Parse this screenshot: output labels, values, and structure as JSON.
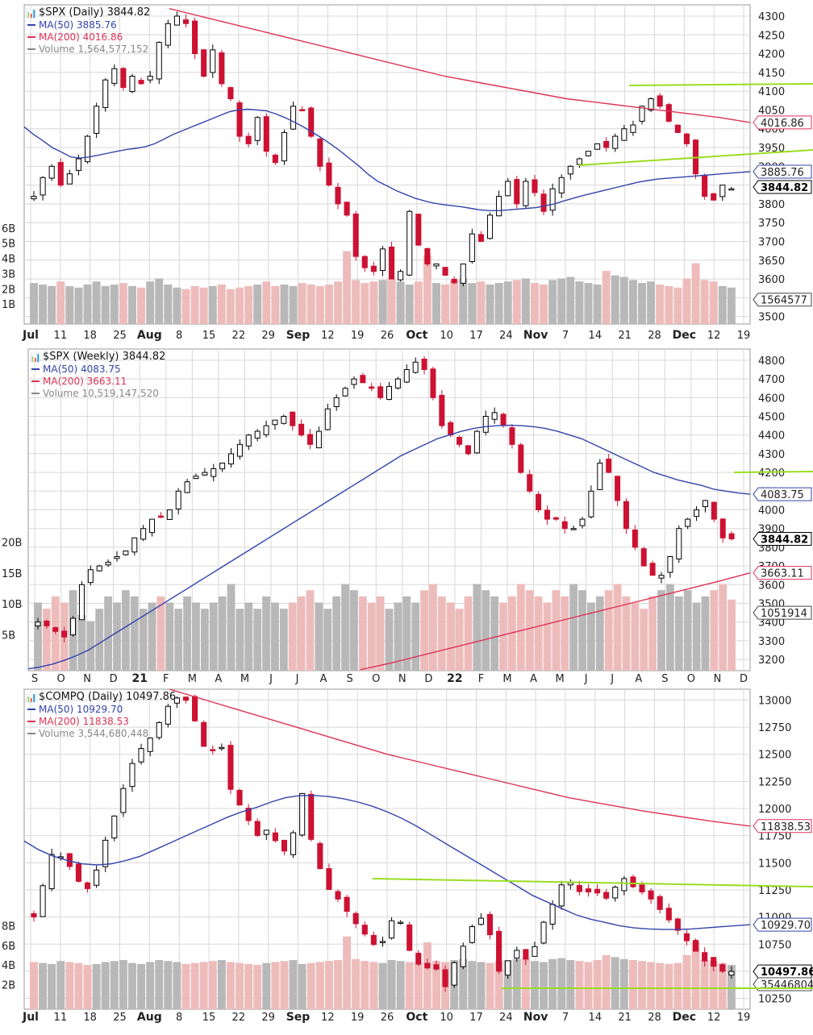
{
  "colors": {
    "up": "#000000",
    "down": "#cc1133",
    "ma50": "#3344aa",
    "ma200": "#dd3355",
    "trend": "#99dd22",
    "volUp": "#b8b8b8",
    "volDown": "#eebbbb",
    "grid": "#d8d8d8"
  },
  "chart_data": [
    {
      "type": "candlestick",
      "title": "$SPX (Daily) 3844.82",
      "legend": [
        {
          "label": "MA(50) 3885.76",
          "color": "#3344aa"
        },
        {
          "label": "MA(200) 4016.86",
          "color": "#dd3355"
        },
        {
          "label": "Volume 1,564,577,152",
          "color": "#888888"
        }
      ],
      "y_ticks": [
        "4300",
        "4250",
        "4200",
        "4150",
        "4100",
        "4050",
        "4000",
        "3950",
        "3900",
        "3850",
        "3800",
        "3750",
        "3700",
        "3650",
        "3600",
        "3550",
        "3500"
      ],
      "ylim": [
        3480,
        4330
      ],
      "vol_ticks": [
        "6B",
        "5B",
        "4B",
        "3B",
        "2B",
        "1B"
      ],
      "vol_max": 7,
      "x_labels": [
        "Jul",
        "11",
        "18",
        "25",
        "Aug",
        "8",
        "15",
        "22",
        "29",
        "Sep",
        "12",
        "19",
        "26",
        "Oct",
        "10",
        "17",
        "24",
        "Nov",
        "7",
        "14",
        "21",
        "28",
        "Dec",
        "12",
        "19"
      ],
      "bold_x_labels": [
        "Jul",
        "Aug",
        "Sep",
        "Oct",
        "Nov",
        "Dec"
      ],
      "tags": [
        {
          "label": "4016.86",
          "value": 4016.86,
          "kind": "ma200"
        },
        {
          "label": "3885.76",
          "value": 3885.76,
          "kind": "ma50"
        },
        {
          "label": "3844.82",
          "value": 3844.82,
          "kind": "last"
        },
        {
          "label": "1564577",
          "value": 3545,
          "kind": "vol"
        }
      ],
      "anchors": [
        3820,
        3870,
        3900,
        3850,
        3880,
        3920,
        3980,
        4060,
        4130,
        4160,
        4110,
        4140,
        4120,
        4140,
        4230,
        4280,
        4300,
        4280,
        4200,
        4140,
        4210,
        4120,
        4080,
        3980,
        3960,
        4030,
        3940,
        3910,
        3990,
        4060,
        4050,
        3980,
        3900,
        3850,
        3800,
        3770,
        3660,
        3630,
        3620,
        3680,
        3600,
        3620,
        3780,
        3690,
        3640,
        3640,
        3610,
        3590,
        3640,
        3720,
        3700,
        3770,
        3820,
        3860,
        3800,
        3860,
        3830,
        3780,
        3840,
        3870,
        3900,
        3920,
        3940,
        3960,
        3950,
        3980,
        4000,
        4010,
        4060,
        4080,
        4060,
        4020,
        3990,
        3960,
        3880,
        3820,
        3810,
        3850,
        3840
      ],
      "ma50": [
        4005,
        3985,
        3968,
        3950,
        3938,
        3925,
        3922,
        3925,
        3930,
        3935,
        3940,
        3945,
        3948,
        3952,
        3960,
        3972,
        3985,
        3995,
        4005,
        4015,
        4025,
        4035,
        4045,
        4050,
        4052,
        4050,
        4048,
        4040,
        4030,
        4018,
        4005,
        3990,
        3975,
        3958,
        3940,
        3920,
        3900,
        3878,
        3860,
        3848,
        3835,
        3825,
        3815,
        3808,
        3802,
        3798,
        3795,
        3792,
        3788,
        3784,
        3782,
        3782,
        3784,
        3786,
        3788,
        3790,
        3795,
        3800,
        3808,
        3815,
        3822,
        3828,
        3834,
        3840,
        3846,
        3852,
        3858,
        3862,
        3866,
        3868,
        3870,
        3872,
        3874,
        3876,
        3878,
        3880,
        3882,
        3884,
        3885.76
      ],
      "ma200": [
        4320,
        4300,
        4280,
        4260,
        4240,
        4220,
        4200,
        4180,
        4160,
        4140,
        4125,
        4110,
        4095,
        4080,
        4070,
        4060,
        4050,
        4040,
        4030,
        4016.86
      ],
      "volumes": [
        2.7,
        2.6,
        2.5,
        2.8,
        2.5,
        2.4,
        2.6,
        2.8,
        2.5,
        2.6,
        2.7,
        2.5,
        2.4,
        2.8,
        3.0,
        2.6,
        2.4,
        2.3,
        2.5,
        2.4,
        2.5,
        2.6,
        2.3,
        2.4,
        2.5,
        2.6,
        2.8,
        2.5,
        2.6,
        2.5,
        2.7,
        2.6,
        2.5,
        2.6,
        2.8,
        4.8,
        2.9,
        2.7,
        2.8,
        2.9,
        3.0,
        2.8,
        2.6,
        2.8,
        4.5,
        2.7,
        2.6,
        2.9,
        3.0,
        2.7,
        2.8,
        2.6,
        2.7,
        2.8,
        2.9,
        3.0,
        2.7,
        2.6,
        2.9,
        3.0,
        3.1,
        2.8,
        2.7,
        2.6,
        3.5,
        3.2,
        3.1,
        2.9,
        2.7,
        2.8,
        2.6,
        2.5,
        2.4,
        3.0,
        4.0,
        2.9,
        2.8,
        2.5,
        2.4
      ]
    },
    {
      "type": "candlestick",
      "title": "$SPX (Weekly) 3844.82",
      "legend": [
        {
          "label": "MA(50) 4083.75",
          "color": "#3344aa"
        },
        {
          "label": "MA(200) 3663.11",
          "color": "#dd3355"
        },
        {
          "label": "Volume 10,519,147,520",
          "color": "#888888"
        }
      ],
      "y_ticks": [
        "4800",
        "4700",
        "4600",
        "4500",
        "4400",
        "4300",
        "4200",
        "4100",
        "4000",
        "3900",
        "3800",
        "3700",
        "3600",
        "3500",
        "3400",
        "3300",
        "3200"
      ],
      "ylim": [
        3140,
        4860
      ],
      "vol_ticks": [
        "20B",
        "15B",
        "10B",
        "5B"
      ],
      "vol_max": 25,
      "x_labels": [
        "S",
        "O",
        "N",
        "D",
        "21",
        "F",
        "M",
        "A",
        "M",
        "J",
        "J",
        "A",
        "S",
        "O",
        "N",
        "D",
        "22",
        "F",
        "M",
        "A",
        "M",
        "J",
        "J",
        "A",
        "S",
        "O",
        "N",
        "D"
      ],
      "bold_x_labels": [
        "21",
        "22"
      ],
      "tags": [
        {
          "label": "4083.75",
          "value": 4083.75,
          "kind": "ma50"
        },
        {
          "label": "3844.82",
          "value": 3844.82,
          "kind": "last"
        },
        {
          "label": "3663.11",
          "value": 3663.11,
          "kind": "ma200"
        },
        {
          "label": "1051914",
          "value": 3450,
          "kind": "vol"
        }
      ],
      "anchors": [
        3400,
        3380,
        3350,
        3320,
        3420,
        3600,
        3680,
        3700,
        3720,
        3750,
        3780,
        3850,
        3900,
        3950,
        3960,
        4000,
        4100,
        4150,
        4180,
        4200,
        4220,
        4250,
        4300,
        4350,
        4400,
        4420,
        4450,
        4480,
        4500,
        4450,
        4400,
        4350,
        4420,
        4540,
        4600,
        4650,
        4700,
        4680,
        4650,
        4600,
        4660,
        4700,
        4750,
        4790,
        4750,
        4600,
        4450,
        4400,
        4350,
        4300,
        4420,
        4500,
        4520,
        4450,
        4350,
        4200,
        4100,
        4000,
        3950,
        3950,
        3900,
        3900,
        3950,
        4100,
        4250,
        4200,
        4050,
        3900,
        3800,
        3700,
        3650,
        3650,
        3750,
        3900,
        3950,
        4000,
        4050,
        3950,
        3850,
        3844.82
      ],
      "ma50": [
        3150,
        3160,
        3175,
        3195,
        3220,
        3250,
        3290,
        3330,
        3370,
        3410,
        3450,
        3490,
        3530,
        3570,
        3610,
        3650,
        3690,
        3730,
        3770,
        3810,
        3850,
        3890,
        3930,
        3970,
        4010,
        4050,
        4090,
        4130,
        4170,
        4210,
        4250,
        4290,
        4320,
        4350,
        4380,
        4400,
        4420,
        4435,
        4445,
        4450,
        4452,
        4450,
        4445,
        4435,
        4420,
        4400,
        4380,
        4350,
        4320,
        4290,
        4260,
        4230,
        4200,
        4180,
        4160,
        4145,
        4130,
        4110,
        4100,
        4090,
        4083.75
      ],
      "ma200": [
        3145,
        3180,
        3220,
        3260,
        3300,
        3340,
        3380,
        3420,
        3460,
        3500,
        3540,
        3580,
        3620,
        3663.11
      ],
      "volumes": [
        11,
        10,
        12,
        11,
        13,
        9,
        8,
        10,
        12,
        11,
        13,
        12,
        10,
        11,
        12,
        11,
        10,
        12,
        11,
        10,
        11,
        12,
        14,
        10,
        11,
        10,
        12,
        11,
        10,
        11,
        12,
        13,
        11,
        10,
        12,
        14,
        13,
        12,
        11,
        12,
        10,
        11,
        12,
        11,
        13,
        14,
        12,
        11,
        10,
        12,
        14,
        13,
        12,
        11,
        12,
        14,
        13,
        12,
        11,
        13,
        12,
        14,
        13,
        11,
        12,
        13,
        14,
        12,
        11,
        10,
        12,
        13,
        14,
        12,
        13,
        11,
        12,
        13,
        14,
        11.5
      ]
    },
    {
      "type": "candlestick",
      "title": "$COMPQ (Daily) 10497.86",
      "legend": [
        {
          "label": "MA(50) 10929.70",
          "color": "#3344aa"
        },
        {
          "label": "MA(200) 11838.53",
          "color": "#dd3355"
        },
        {
          "label": "Volume 3,544,680,448",
          "color": "#888888"
        }
      ],
      "y_ticks": [
        "13000",
        "12750",
        "12500",
        "12250",
        "12000",
        "11750",
        "11500",
        "11250",
        "11000",
        "10750",
        "10500",
        "10250"
      ],
      "ylim": [
        10150,
        13100
      ],
      "vol_ticks": [
        "8B",
        "6B",
        "4B",
        "2B"
      ],
      "vol_max": 10,
      "x_labels": [
        "Jul",
        "11",
        "18",
        "25",
        "Aug",
        "8",
        "15",
        "22",
        "29",
        "Sep",
        "12",
        "19",
        "26",
        "Oct",
        "10",
        "17",
        "24",
        "Nov",
        "7",
        "14",
        "21",
        "28",
        "Dec",
        "12",
        "19"
      ],
      "bold_x_labels": [
        "Jul",
        "Aug",
        "Sep",
        "Oct",
        "Nov",
        "Dec"
      ],
      "tags": [
        {
          "label": "11838.53",
          "value": 11838.53,
          "kind": "ma200"
        },
        {
          "label": "10929.70",
          "value": 10929.7,
          "kind": "ma50"
        },
        {
          "label": "10497.86",
          "value": 10497.86,
          "kind": "last"
        },
        {
          "label": "35446804",
          "value": 10380,
          "kind": "vol"
        }
      ],
      "anchors": [
        11000,
        11300,
        11600,
        11550,
        11450,
        11300,
        11250,
        11500,
        11800,
        12000,
        12300,
        12500,
        12600,
        12700,
        12900,
        13000,
        13050,
        12900,
        12600,
        12500,
        12650,
        12200,
        12050,
        11900,
        11750,
        11800,
        11700,
        11600,
        11800,
        12200,
        11600,
        11400,
        11200,
        11150,
        11000,
        10900,
        10800,
        10700,
        10850,
        11100,
        10750,
        10600,
        10500,
        10600,
        10300,
        10550,
        10700,
        10900,
        11000,
        10850,
        10500,
        10600,
        10700,
        10600,
        10750,
        11000,
        11150,
        11350,
        11300,
        11200,
        11250,
        11200,
        11150,
        11400,
        11300,
        11250,
        11200,
        11100,
        11000,
        10900,
        10800,
        10700,
        10600,
        10550,
        10500,
        10497.86
      ],
      "ma50": [
        11700,
        11620,
        11560,
        11520,
        11490,
        11480,
        11490,
        11520,
        11560,
        11620,
        11680,
        11740,
        11800,
        11860,
        11920,
        11970,
        12010,
        12060,
        12100,
        12120,
        12120,
        12110,
        12090,
        12060,
        12020,
        11970,
        11910,
        11840,
        11760,
        11680,
        11600,
        11520,
        11440,
        11360,
        11280,
        11200,
        11140,
        11080,
        11020,
        10980,
        10950,
        10920,
        10900,
        10890,
        10885,
        10885,
        10890,
        10900,
        10910,
        10920,
        10929.7
      ],
      "ma200": [
        13100,
        13000,
        12900,
        12800,
        12700,
        12600,
        12500,
        12420,
        12340,
        12260,
        12180,
        12100,
        12040,
        11980,
        11930,
        11880,
        11838.53
      ],
      "volumes": [
        4.8,
        4.7,
        4.6,
        4.9,
        4.8,
        4.7,
        4.5,
        4.6,
        4.8,
        4.9,
        5.0,
        4.7,
        4.6,
        4.8,
        5.0,
        4.9,
        4.8,
        4.6,
        4.7,
        4.8,
        4.9,
        5.0,
        4.8,
        4.7,
        4.6,
        4.5,
        4.7,
        4.8,
        4.9,
        5.0,
        4.6,
        4.7,
        4.8,
        4.9,
        5.0,
        7.4,
        5.1,
        4.9,
        4.8,
        4.7,
        5.0,
        4.9,
        4.8,
        4.7,
        6.8,
        4.9,
        4.8,
        5.0,
        5.1,
        4.9,
        4.8,
        4.7,
        4.9,
        5.0,
        5.1,
        5.2,
        4.9,
        4.8,
        5.1,
        5.2,
        5.0,
        4.9,
        4.8,
        5.0,
        5.5,
        5.3,
        5.1,
        5.0,
        4.9,
        4.8,
        4.7,
        4.6,
        4.7,
        5.5,
        6.8,
        5.0,
        4.9,
        4.7,
        4.5
      ]
    }
  ]
}
